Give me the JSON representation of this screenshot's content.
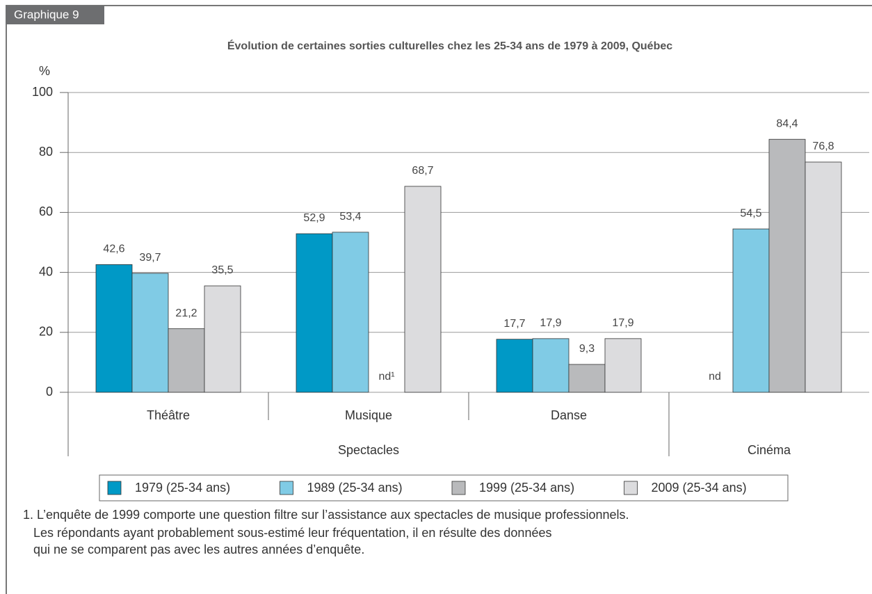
{
  "chart_data": {
    "type": "bar",
    "tag": "Graphique 9",
    "title": "Évolution de certaines sorties culturelles chez les 25-34 ans de 1979 à 2009, Québec",
    "y_label": "%",
    "categories": [
      "Théâtre",
      "Musique",
      "Danse",
      null
    ],
    "category_groups": [
      "Spectacles",
      "Spectacles",
      "Spectacles",
      "Cinéma"
    ],
    "series": [
      {
        "name": "1979 (25-34 ans)",
        "color": "#0099c6",
        "values": [
          42.6,
          52.9,
          17.7,
          null
        ],
        "value_labels": [
          "42,6",
          "52,9",
          "17,7",
          "nd"
        ]
      },
      {
        "name": "1989 (25-34 ans)",
        "color": "#80cbe5",
        "values": [
          39.7,
          53.4,
          17.9,
          54.5
        ],
        "value_labels": [
          "39,7",
          "53,4",
          "17,9",
          "54,5"
        ]
      },
      {
        "name": "1999 (25-34 ans)",
        "color": "#b9babc",
        "values": [
          21.2,
          null,
          9.3,
          84.4
        ],
        "value_labels": [
          "21,2",
          "nd¹",
          "9,3",
          "84,4"
        ]
      },
      {
        "name": "2009 (25-34 ans)",
        "color": "#dcdcde",
        "values": [
          35.5,
          68.7,
          17.9,
          76.8
        ],
        "value_labels": [
          "35,5",
          "68,7",
          "17,9",
          "76,8"
        ]
      }
    ],
    "ylim": [
      0,
      100
    ],
    "yticks": [
      0,
      20,
      40,
      60,
      80,
      100
    ],
    "grid": true,
    "footnote": [
      "1. L’enquête de 1999 comporte une question filtre sur l’assistance aux spectacles de musique professionnels.",
      "Les répondants ayant probablement sous-estimé leur fréquentation, il en résulte des données",
      "qui ne se comparent pas avec les autres années d’enquête."
    ]
  }
}
